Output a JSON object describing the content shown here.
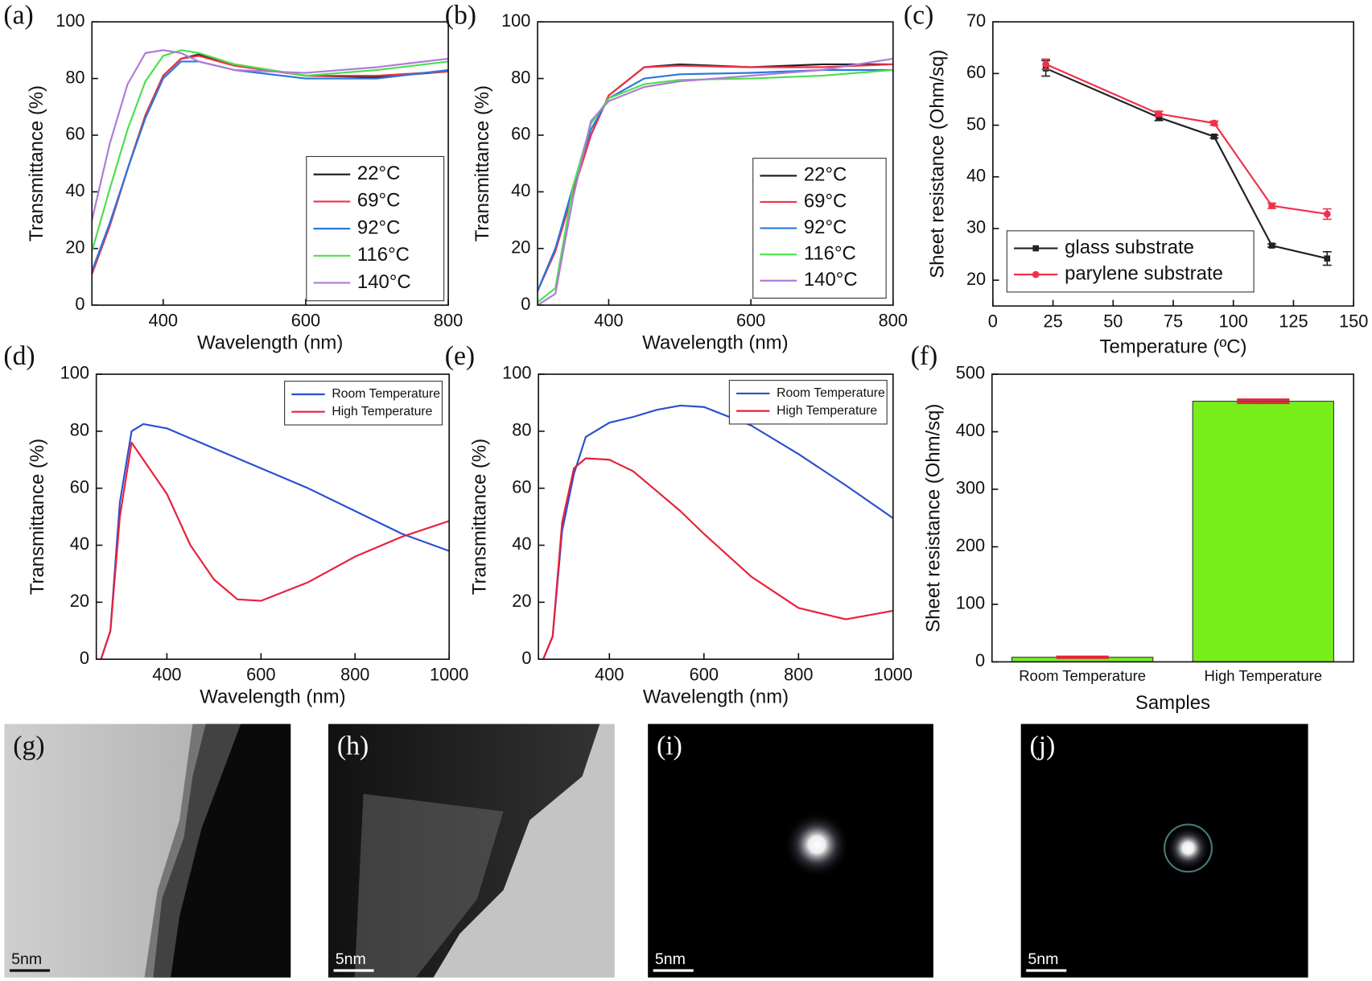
{
  "chart_data": [
    {
      "type": "line",
      "panel": "(a)",
      "x_label": "Wavelength (nm)",
      "y_label": "Transmittance (%)",
      "x": [
        300,
        325,
        350,
        375,
        400,
        425,
        450,
        500,
        600,
        700,
        800
      ],
      "series": [
        {
          "name": "22°C",
          "color": "#222222",
          "values": [
            11,
            28,
            48,
            67,
            81,
            87,
            88.5,
            85,
            81,
            80.5,
            82.5
          ]
        },
        {
          "name": "69°C",
          "color": "#f0304a",
          "values": [
            11,
            28,
            48,
            67,
            81,
            87,
            88,
            84.5,
            81,
            81,
            82.5
          ]
        },
        {
          "name": "92°C",
          "color": "#2a78dc",
          "values": [
            12,
            29,
            48,
            66,
            80,
            86,
            86,
            83,
            80,
            80,
            83
          ]
        },
        {
          "name": "116°C",
          "color": "#4be04b",
          "values": [
            19,
            41,
            62,
            79,
            88,
            90,
            89,
            85,
            81,
            83,
            86
          ]
        },
        {
          "name": "140°C",
          "color": "#b07ad8",
          "values": [
            30,
            57,
            78,
            89,
            90,
            89,
            86,
            83,
            82,
            84,
            87
          ]
        }
      ],
      "xlim": [
        300,
        800
      ],
      "xticks": [
        400,
        600,
        800
      ],
      "ylim": [
        0,
        100
      ],
      "yticks": [
        0,
        20,
        40,
        60,
        80,
        100
      ],
      "legend": "lower right"
    },
    {
      "type": "line",
      "panel": "(b)",
      "x_label": "Wavelength (nm)",
      "y_label": "Transmittance (%)",
      "x": [
        300,
        325,
        350,
        375,
        400,
        450,
        500,
        600,
        700,
        800
      ],
      "series": [
        {
          "name": "22°C",
          "color": "#222222",
          "values": [
            5,
            20,
            40,
            60,
            74,
            84,
            85,
            84,
            85,
            85
          ]
        },
        {
          "name": "69°C",
          "color": "#f0304a",
          "values": [
            5,
            19,
            40,
            60,
            74,
            84,
            84.5,
            84,
            84,
            85
          ]
        },
        {
          "name": "92°C",
          "color": "#2a78dc",
          "values": [
            5,
            20,
            42,
            62,
            73,
            80,
            81.5,
            82,
            83,
            83
          ]
        },
        {
          "name": "116°C",
          "color": "#4be04b",
          "values": [
            1,
            6,
            42,
            64,
            73,
            78,
            79.5,
            80,
            81,
            83
          ]
        },
        {
          "name": "140°C",
          "color": "#b07ad8",
          "values": [
            0,
            4,
            38,
            65,
            72,
            77,
            79,
            81,
            83,
            87
          ]
        }
      ],
      "xlim": [
        300,
        800
      ],
      "xticks": [
        400,
        600,
        800
      ],
      "ylim": [
        0,
        100
      ],
      "yticks": [
        0,
        20,
        40,
        60,
        80,
        100
      ],
      "legend": "lower right"
    },
    {
      "type": "line",
      "panel": "(c)",
      "x_label": "Temperature (ºC)",
      "y_label": "Sheet resistance (Ohm/sq)",
      "x": [
        22,
        69,
        92,
        116,
        139
      ],
      "series": [
        {
          "name": "glass substrate",
          "color": "#222222",
          "marker": "square",
          "values": [
            61,
            51.5,
            47.8,
            26.7,
            24.2
          ],
          "errors": [
            1.5,
            0.6,
            0.3,
            0.3,
            1.3
          ]
        },
        {
          "name": "parylene substrate",
          "color": "#f0304a",
          "marker": "circle",
          "values": [
            61.8,
            52.2,
            50.4,
            34.4,
            32.8
          ],
          "errors": [
            1,
            0.5,
            0.4,
            0.5,
            1
          ]
        }
      ],
      "xlim": [
        0,
        150
      ],
      "xticks": [
        0,
        25,
        50,
        75,
        100,
        125,
        150
      ],
      "ylim": [
        15,
        70
      ],
      "yticks": [
        20,
        30,
        40,
        50,
        60,
        70
      ],
      "legend": "lower left"
    },
    {
      "type": "line",
      "panel": "(d)",
      "x_label": "Wavelength (nm)",
      "y_label": "Transmittance (%)",
      "x": [
        260,
        280,
        300,
        325,
        350,
        400,
        450,
        500,
        550,
        600,
        700,
        800,
        900,
        1000
      ],
      "series": [
        {
          "name": "Room Temperature",
          "color": "#2c4fd0",
          "values": [
            0,
            10,
            55,
            80,
            82.5,
            81,
            77.5,
            74,
            70.5,
            67,
            60,
            52,
            44,
            38
          ]
        },
        {
          "name": "High Temperature",
          "color": "#e8203a",
          "values": [
            0,
            10,
            50,
            76,
            70,
            58,
            40,
            28,
            21,
            20.5,
            27,
            36,
            43,
            48.5
          ]
        }
      ],
      "xlim": [
        250,
        1000
      ],
      "xticks": [
        400,
        600,
        800,
        1000
      ],
      "ylim": [
        0,
        100
      ],
      "yticks": [
        0,
        20,
        40,
        60,
        80,
        100
      ],
      "legend": "upper right"
    },
    {
      "type": "line",
      "panel": "(e)",
      "x_label": "Wavelength (nm)",
      "y_label": "Transmittance (%)",
      "x": [
        260,
        280,
        300,
        325,
        350,
        400,
        450,
        500,
        550,
        600,
        700,
        800,
        900,
        1000
      ],
      "series": [
        {
          "name": "Room Temperature",
          "color": "#2c4fd0",
          "values": [
            0,
            8,
            45,
            65,
            78,
            83,
            85,
            87.5,
            89,
            88.5,
            82,
            72,
            61,
            49.5
          ]
        },
        {
          "name": "High Temperature",
          "color": "#e8203a",
          "values": [
            0,
            8,
            48,
            67,
            70.5,
            70,
            66,
            59,
            52,
            44,
            29,
            18,
            14,
            17
          ]
        }
      ],
      "xlim": [
        250,
        1000
      ],
      "xticks": [
        400,
        600,
        800,
        1000
      ],
      "ylim": [
        0,
        100
      ],
      "yticks": [
        0,
        20,
        40,
        60,
        80,
        100
      ],
      "legend": "upper right"
    },
    {
      "type": "bar",
      "panel": "(f)",
      "x_label": "Samples",
      "y_label": "Sheet resistance (Ohm/sq)",
      "categories": [
        "Room Temperature",
        "High Temperature"
      ],
      "values": [
        8,
        453
      ],
      "errors": [
        1,
        3
      ],
      "color": "#77ee1a",
      "error_color": "#e8203a",
      "ylim": [
        0,
        500
      ],
      "yticks": [
        0,
        100,
        200,
        300,
        400,
        500
      ]
    }
  ],
  "images": [
    {
      "label": "(g)",
      "scale_bar": "5nm"
    },
    {
      "label": "(h)",
      "scale_bar": "5nm"
    },
    {
      "label": "(i)",
      "scale_bar": "5nm"
    },
    {
      "label": "(j)",
      "scale_bar": "5nm"
    }
  ]
}
